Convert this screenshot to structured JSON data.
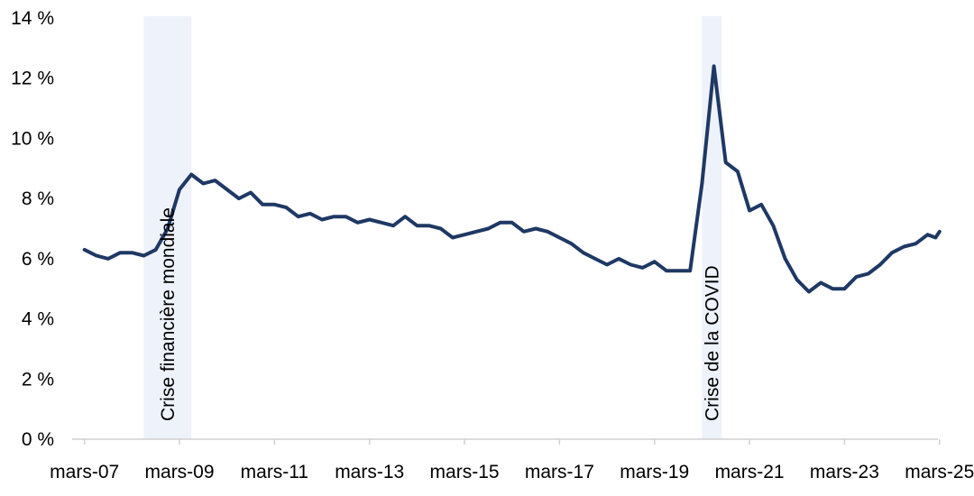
{
  "chart_data": {
    "type": "line",
    "title": "",
    "xlabel": "",
    "ylabel": "",
    "ylim": [
      0,
      14
    ],
    "y_ticks": [
      {
        "value": 0,
        "label": "0 %"
      },
      {
        "value": 2,
        "label": "2 %"
      },
      {
        "value": 4,
        "label": "4 %"
      },
      {
        "value": 6,
        "label": "6 %"
      },
      {
        "value": 8,
        "label": "8 %"
      },
      {
        "value": 10,
        "label": "10 %"
      },
      {
        "value": 12,
        "label": "12 %"
      },
      {
        "value": 14,
        "label": "14 %"
      }
    ],
    "x_ticks": [
      {
        "value": "2007-03",
        "label": "mars-07"
      },
      {
        "value": "2009-03",
        "label": "mars-09"
      },
      {
        "value": "2011-03",
        "label": "mars-11"
      },
      {
        "value": "2013-03",
        "label": "mars-13"
      },
      {
        "value": "2015-03",
        "label": "mars-15"
      },
      {
        "value": "2017-03",
        "label": "mars-17"
      },
      {
        "value": "2019-03",
        "label": "mars-19"
      },
      {
        "value": "2021-03",
        "label": "mars-21"
      },
      {
        "value": "2023-03",
        "label": "mars-23"
      },
      {
        "value": "2025-03",
        "label": "mars-25"
      }
    ],
    "shaded_periods": [
      {
        "start": "2008-06",
        "end": "2009-06",
        "label": "Crise financière mondiale",
        "color": "#eef2fa"
      },
      {
        "start": "2020-03",
        "end": "2020-08",
        "label": "Crise de la COVID",
        "color": "#eef2fa"
      }
    ],
    "grid": false,
    "series": [
      {
        "color": "#1f3864",
        "points": [
          [
            "2007-03",
            6.3
          ],
          [
            "2007-06",
            6.1
          ],
          [
            "2007-09",
            6.0
          ],
          [
            "2007-12",
            6.2
          ],
          [
            "2008-03",
            6.2
          ],
          [
            "2008-06",
            6.1
          ],
          [
            "2008-09",
            6.3
          ],
          [
            "2008-12",
            7.0
          ],
          [
            "2009-03",
            8.3
          ],
          [
            "2009-06",
            8.8
          ],
          [
            "2009-09",
            8.5
          ],
          [
            "2009-12",
            8.6
          ],
          [
            "2010-03",
            8.3
          ],
          [
            "2010-06",
            8.0
          ],
          [
            "2010-09",
            8.2
          ],
          [
            "2010-12",
            7.8
          ],
          [
            "2011-03",
            7.8
          ],
          [
            "2011-06",
            7.7
          ],
          [
            "2011-09",
            7.4
          ],
          [
            "2011-12",
            7.5
          ],
          [
            "2012-03",
            7.3
          ],
          [
            "2012-06",
            7.4
          ],
          [
            "2012-09",
            7.4
          ],
          [
            "2012-12",
            7.2
          ],
          [
            "2013-03",
            7.3
          ],
          [
            "2013-06",
            7.2
          ],
          [
            "2013-09",
            7.1
          ],
          [
            "2013-12",
            7.4
          ],
          [
            "2014-03",
            7.1
          ],
          [
            "2014-06",
            7.1
          ],
          [
            "2014-09",
            7.0
          ],
          [
            "2014-12",
            6.7
          ],
          [
            "2015-03",
            6.8
          ],
          [
            "2015-06",
            6.9
          ],
          [
            "2015-09",
            7.0
          ],
          [
            "2015-12",
            7.2
          ],
          [
            "2016-03",
            7.2
          ],
          [
            "2016-06",
            6.9
          ],
          [
            "2016-09",
            7.0
          ],
          [
            "2016-12",
            6.9
          ],
          [
            "2017-03",
            6.7
          ],
          [
            "2017-06",
            6.5
          ],
          [
            "2017-09",
            6.2
          ],
          [
            "2017-12",
            6.0
          ],
          [
            "2018-03",
            5.8
          ],
          [
            "2018-06",
            6.0
          ],
          [
            "2018-09",
            5.8
          ],
          [
            "2018-12",
            5.7
          ],
          [
            "2019-03",
            5.9
          ],
          [
            "2019-06",
            5.6
          ],
          [
            "2019-09",
            5.6
          ],
          [
            "2019-12",
            5.6
          ],
          [
            "2020-03",
            8.5
          ],
          [
            "2020-06",
            12.4
          ],
          [
            "2020-09",
            9.2
          ],
          [
            "2020-12",
            8.9
          ],
          [
            "2021-03",
            7.6
          ],
          [
            "2021-06",
            7.8
          ],
          [
            "2021-09",
            7.1
          ],
          [
            "2021-12",
            6.0
          ],
          [
            "2022-03",
            5.3
          ],
          [
            "2022-06",
            4.9
          ],
          [
            "2022-09",
            5.2
          ],
          [
            "2022-12",
            5.0
          ],
          [
            "2023-03",
            5.0
          ],
          [
            "2023-06",
            5.4
          ],
          [
            "2023-09",
            5.5
          ],
          [
            "2023-12",
            5.8
          ],
          [
            "2024-03",
            6.2
          ],
          [
            "2024-06",
            6.4
          ],
          [
            "2024-09",
            6.5
          ],
          [
            "2024-12",
            6.8
          ],
          [
            "2025-02",
            6.7
          ],
          [
            "2025-03",
            6.9
          ]
        ]
      }
    ]
  }
}
